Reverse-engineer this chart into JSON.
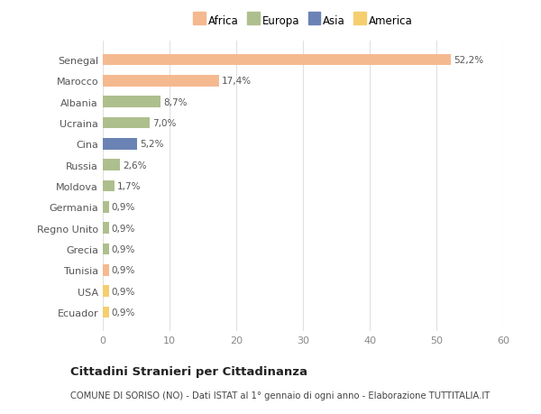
{
  "categories": [
    "Senegal",
    "Marocco",
    "Albania",
    "Ucraina",
    "Cina",
    "Russia",
    "Moldova",
    "Germania",
    "Regno Unito",
    "Grecia",
    "Tunisia",
    "USA",
    "Ecuador"
  ],
  "values": [
    52.2,
    17.4,
    8.7,
    7.0,
    5.2,
    2.6,
    1.7,
    0.9,
    0.9,
    0.9,
    0.9,
    0.9,
    0.9
  ],
  "labels": [
    "52,2%",
    "17,4%",
    "8,7%",
    "7,0%",
    "5,2%",
    "2,6%",
    "1,7%",
    "0,9%",
    "0,9%",
    "0,9%",
    "0,9%",
    "0,9%",
    "0,9%"
  ],
  "continent": [
    "Africa",
    "Africa",
    "Europa",
    "Europa",
    "Asia",
    "Europa",
    "Europa",
    "Europa",
    "Europa",
    "Europa",
    "Africa",
    "America",
    "America"
  ],
  "legend_labels": [
    "Africa",
    "Europa",
    "Asia",
    "America"
  ],
  "legend_colors": [
    "#F5B990",
    "#AEBF8E",
    "#6B82B5",
    "#F5CE6E"
  ],
  "xlim": [
    0,
    60
  ],
  "xticks": [
    0,
    10,
    20,
    30,
    40,
    50,
    60
  ],
  "title": "Cittadini Stranieri per Cittadinanza",
  "subtitle": "COMUNE DI SORISO (NO) - Dati ISTAT al 1° gennaio di ogni anno - Elaborazione TUTTITALIA.IT",
  "bg_color": "#ffffff",
  "bar_africa_color": "#F5B990",
  "bar_europa_color": "#AEBF8E",
  "bar_asia_color": "#6B82B5",
  "bar_america_color": "#F5CE6E",
  "bar_tunisia_color": "#F5B990",
  "grid_color": "#e0e0e0",
  "label_color": "#555555",
  "tick_color": "#888888"
}
